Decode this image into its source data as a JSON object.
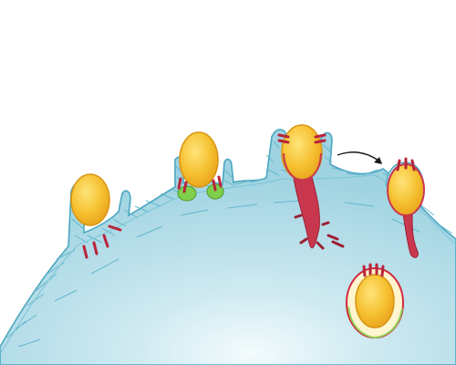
{
  "diagram": {
    "labels": [],
    "colors": {
      "background": "#ffffff",
      "cell_fill": "#a9d7e3",
      "cell_highlight": "#f3fbfd",
      "membrane_line": "#5ab0c7",
      "cytoskeleton": "#6fbfd6",
      "parasite_fill": "#f5c02f",
      "parasite_highlight": "#ffe47a",
      "parasite_outline": "#d99512",
      "junction": "#b8243a",
      "tail": "#c9374e",
      "green_protein": "#7fcf4b",
      "vacuole_membrane": "#d1293f",
      "vacuole_inner": "#fff6cf"
    },
    "stages": [
      {
        "name": "attachment"
      },
      {
        "name": "moving-junction-formation"
      },
      {
        "name": "invasion-with-trailing-membrane"
      },
      {
        "name": "internalized-parasite"
      },
      {
        "name": "parasitophorous-vacuole"
      }
    ]
  }
}
